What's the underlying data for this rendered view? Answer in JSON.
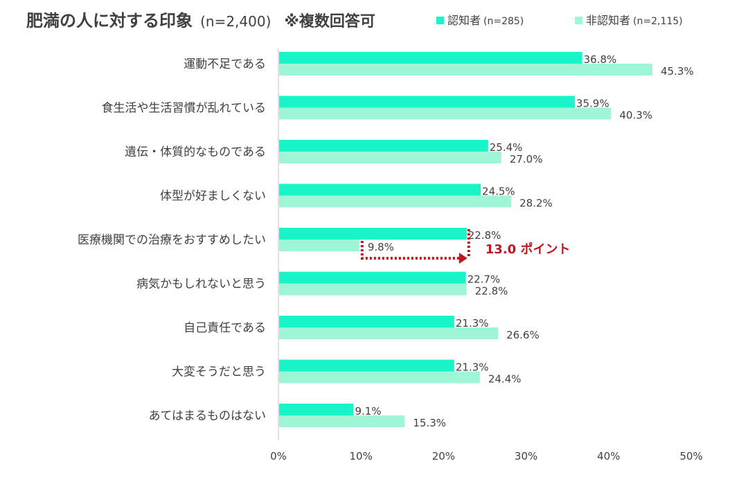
{
  "title": {
    "main": "肥満の人に対する印象",
    "sample": "(n=2,400)",
    "note": "※複数回答可"
  },
  "colors": {
    "aware": "#19f5c8",
    "unaware": "#9ff6d6",
    "axis": "#d9d9d9",
    "annotation": "#c0141e",
    "text": "#404040"
  },
  "chart_data": {
    "type": "bar",
    "orientation": "horizontal",
    "categories": [
      "運動不足である",
      "食生活や生活習慣が乱れている",
      "遺伝・体質的なものである",
      "体型が好ましくない",
      "医療機関での治療をおすすめしたい",
      "病気かもしれないと思う",
      "自己責任である",
      "大変そうだと思う",
      "あてはまるものはない"
    ],
    "series": [
      {
        "name": "認知者",
        "sample": "(n=285)",
        "values": [
          36.8,
          35.9,
          25.4,
          24.5,
          22.8,
          22.7,
          21.3,
          21.3,
          9.1
        ]
      },
      {
        "name": "非認知者",
        "sample": "(n=2,115)",
        "values": [
          45.3,
          40.3,
          27.0,
          28.2,
          9.8,
          22.8,
          26.6,
          24.4,
          15.3
        ]
      }
    ],
    "xlim": [
      0,
      50
    ],
    "x_ticks": [
      "0%",
      "10%",
      "20%",
      "30%",
      "40%",
      "50%"
    ],
    "grid": false,
    "legend": "top-right",
    "annotation": {
      "text": "13.0 ポイント",
      "category": "医療機関での治療をおすすめしたい"
    }
  }
}
